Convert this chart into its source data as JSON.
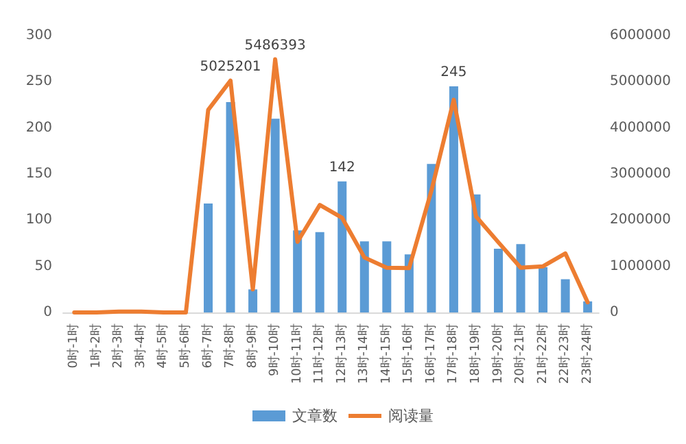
{
  "chart_data": {
    "type": "bar",
    "categories": [
      "0时-1时",
      "1时-2时",
      "2时-3时",
      "3时-4时",
      "4时-5时",
      "5时-6时",
      "6时-7时",
      "7时-8时",
      "8时-9时",
      "9时-10时",
      "10时-11时",
      "11时-12时",
      "12时-13时",
      "13时-14时",
      "14时-15时",
      "15时-16时",
      "16时-17时",
      "17时-18时",
      "18时-19时",
      "19时-20时",
      "20时-21时",
      "21时-22时",
      "22时-23时",
      "23时-24时"
    ],
    "series": [
      {
        "name": "文章数",
        "color": "#5b9bd5",
        "values": [
          0,
          0,
          0,
          0,
          0,
          0,
          118,
          228,
          25,
          210,
          89,
          87,
          142,
          77,
          77,
          63,
          161,
          245,
          128,
          69,
          74,
          49,
          36,
          12
        ],
        "value_labels": [
          null,
          null,
          null,
          null,
          null,
          null,
          null,
          null,
          null,
          null,
          null,
          null,
          "142",
          null,
          null,
          null,
          null,
          "245",
          null,
          null,
          null,
          null,
          null,
          null
        ]
      },
      {
        "name": "阅读量",
        "type": "line",
        "axis": "y2",
        "color": "#ed7d31",
        "values": [
          0,
          0,
          20000,
          20000,
          0,
          0,
          4390000,
          5025201,
          500000,
          5486393,
          1530000,
          2330000,
          2050000,
          1190000,
          970000,
          960000,
          2640000,
          4610000,
          2080000,
          1520000,
          970000,
          1000000,
          1280000,
          220000
        ],
        "value_labels": [
          null,
          null,
          null,
          null,
          null,
          null,
          null,
          "5025201",
          null,
          "5486393",
          null,
          null,
          null,
          null,
          null,
          null,
          null,
          null,
          null,
          null,
          null,
          null,
          null,
          null
        ]
      }
    ],
    "ylim": [
      0,
      300
    ],
    "yticks": [
      0,
      50,
      100,
      150,
      200,
      250,
      300
    ],
    "y2lim": [
      0,
      6000000
    ],
    "y2ticks": [
      0,
      1000000,
      2000000,
      3000000,
      4000000,
      5000000,
      6000000
    ],
    "grid": false,
    "legend": "bottom",
    "marker": "none",
    "line_style": "solid"
  }
}
